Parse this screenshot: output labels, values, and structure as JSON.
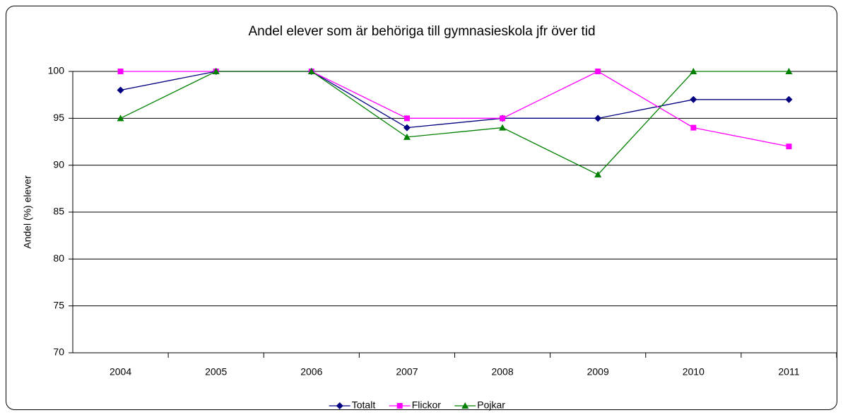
{
  "chart_data": {
    "type": "line",
    "title": "Andel elever som är behöriga till gymnasieskola jfr över tid",
    "y_label": "Andel (%) elever",
    "categories": [
      "2004",
      "2005",
      "2006",
      "2007",
      "2008",
      "2009",
      "2010",
      "2011"
    ],
    "series": [
      {
        "name": "Totalt",
        "color": "#000080",
        "marker": "diamond",
        "values": [
          98,
          100,
          100,
          94,
          95,
          95,
          97,
          97
        ]
      },
      {
        "name": "Flickor",
        "color": "#ff00ff",
        "marker": "square",
        "values": [
          100,
          100,
          100,
          95,
          95,
          100,
          94,
          92
        ]
      },
      {
        "name": "Pojkar",
        "color": "#008000",
        "marker": "triangle",
        "values": [
          95,
          100,
          100,
          93,
          94,
          89,
          100,
          100
        ]
      }
    ],
    "ylim": [
      70,
      100
    ],
    "yticks": [
      70,
      75,
      80,
      85,
      90,
      95,
      100
    ],
    "grid": true,
    "legend": "bottom"
  }
}
